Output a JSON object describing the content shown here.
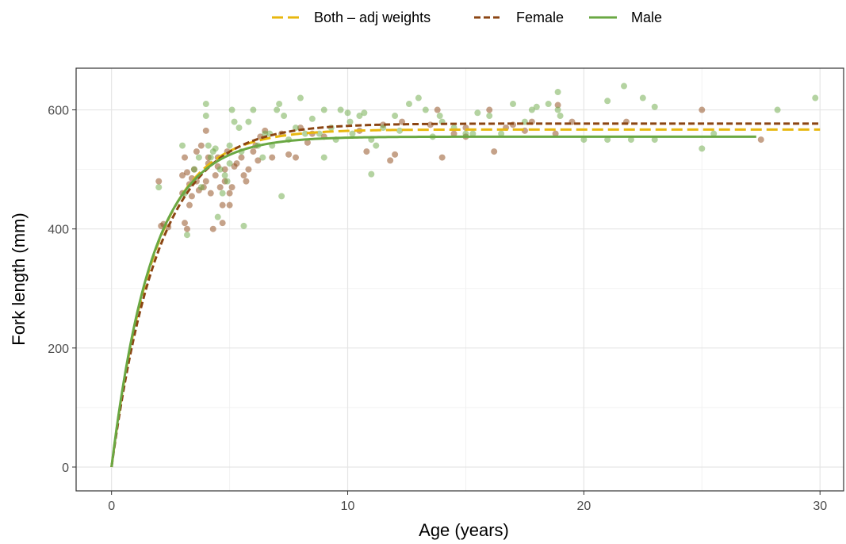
{
  "chart_data": {
    "type": "scatter",
    "xlabel": "Age (years)",
    "ylabel": "Fork length (mm)",
    "xlim": [
      -1.5,
      31
    ],
    "ylim": [
      -40,
      670
    ],
    "x_ticks": [
      0,
      10,
      20,
      30
    ],
    "y_ticks": [
      0,
      200,
      400,
      600
    ],
    "grid": true,
    "legend_position": "top",
    "colors": {
      "both": "#E8B70F",
      "female": "#8B4513",
      "male": "#6AA843"
    },
    "series": [
      {
        "name": "Both – adj weights",
        "color": "#E8B70F",
        "linestyle": "longdash",
        "linf": 567,
        "k": 0.55,
        "t0": 0,
        "xmax": 30
      },
      {
        "name": "Female",
        "color": "#8B4513",
        "linestyle": "dashed",
        "linf": 577,
        "k": 0.5,
        "t0": 0,
        "xmax": 30
      },
      {
        "name": "Male",
        "color": "#6AA843",
        "linestyle": "solid",
        "linf": 555,
        "k": 0.58,
        "t0": 0,
        "xmax": 27.3
      }
    ],
    "points_female": [
      [
        2.1,
        405
      ],
      [
        2.2,
        408
      ],
      [
        2.0,
        480
      ],
      [
        3.0,
        490
      ],
      [
        3.2,
        495
      ],
      [
        3.1,
        520
      ],
      [
        3.3,
        475
      ],
      [
        3.0,
        460
      ],
      [
        3.3,
        440
      ],
      [
        3.1,
        410
      ],
      [
        3.2,
        400
      ],
      [
        3.4,
        455
      ],
      [
        3.5,
        500
      ],
      [
        3.6,
        530
      ],
      [
        3.8,
        540
      ],
      [
        3.9,
        470
      ],
      [
        4.0,
        565
      ],
      [
        4.1,
        520
      ],
      [
        4.0,
        480
      ],
      [
        4.2,
        460
      ],
      [
        4.3,
        400
      ],
      [
        4.4,
        490
      ],
      [
        4.5,
        520
      ],
      [
        4.6,
        470
      ],
      [
        4.7,
        440
      ],
      [
        4.7,
        410
      ],
      [
        4.8,
        500
      ],
      [
        4.9,
        530
      ],
      [
        5.0,
        460
      ],
      [
        5.0,
        440
      ],
      [
        5.1,
        470
      ],
      [
        5.5,
        520
      ],
      [
        5.7,
        480
      ],
      [
        5.8,
        500
      ],
      [
        5.6,
        490
      ],
      [
        6.0,
        530
      ],
      [
        6.1,
        540
      ],
      [
        6.3,
        555
      ],
      [
        6.5,
        565
      ],
      [
        6.8,
        520
      ],
      [
        7.2,
        560
      ],
      [
        7.5,
        525
      ],
      [
        7.8,
        520
      ],
      [
        8.0,
        570
      ],
      [
        8.3,
        545
      ],
      [
        8.5,
        560
      ],
      [
        9.0,
        555
      ],
      [
        10.5,
        565
      ],
      [
        10.8,
        530
      ],
      [
        11.5,
        575
      ],
      [
        11.8,
        515
      ],
      [
        12.0,
        525
      ],
      [
        12.3,
        580
      ],
      [
        13.5,
        575
      ],
      [
        13.8,
        600
      ],
      [
        14.0,
        520
      ],
      [
        14.5,
        560
      ],
      [
        15.0,
        555
      ],
      [
        15.0,
        570
      ],
      [
        16.0,
        600
      ],
      [
        16.2,
        530
      ],
      [
        16.7,
        570
      ],
      [
        17.0,
        575
      ],
      [
        17.5,
        565
      ],
      [
        17.8,
        580
      ],
      [
        18.8,
        560
      ],
      [
        18.9,
        608
      ],
      [
        19.5,
        580
      ],
      [
        21.8,
        580
      ],
      [
        25.0,
        600
      ],
      [
        27.5,
        550
      ],
      [
        4.5,
        505
      ],
      [
        3.7,
        465
      ],
      [
        5.3,
        510
      ],
      [
        6.2,
        515
      ],
      [
        4.1,
        510
      ],
      [
        3.4,
        485
      ],
      [
        2.4,
        403
      ],
      [
        4.8,
        480
      ],
      [
        5.2,
        505
      ],
      [
        3.6,
        480
      ]
    ],
    "points_male": [
      [
        2.0,
        470
      ],
      [
        3.0,
        540
      ],
      [
        3.2,
        390
      ],
      [
        3.1,
        460
      ],
      [
        3.5,
        500
      ],
      [
        3.8,
        470
      ],
      [
        4.0,
        610
      ],
      [
        4.0,
        590
      ],
      [
        4.1,
        540
      ],
      [
        4.3,
        530
      ],
      [
        4.5,
        420
      ],
      [
        4.6,
        500
      ],
      [
        4.7,
        460
      ],
      [
        4.8,
        490
      ],
      [
        4.9,
        480
      ],
      [
        5.0,
        540
      ],
      [
        5.0,
        510
      ],
      [
        5.1,
        600
      ],
      [
        5.2,
        580
      ],
      [
        5.4,
        570
      ],
      [
        5.6,
        405
      ],
      [
        5.8,
        580
      ],
      [
        6.0,
        600
      ],
      [
        6.2,
        540
      ],
      [
        6.5,
        560
      ],
      [
        6.7,
        560
      ],
      [
        6.8,
        540
      ],
      [
        7.0,
        600
      ],
      [
        7.1,
        610
      ],
      [
        7.2,
        455
      ],
      [
        7.3,
        590
      ],
      [
        7.5,
        550
      ],
      [
        7.8,
        570
      ],
      [
        8.0,
        620
      ],
      [
        8.2,
        560
      ],
      [
        8.5,
        585
      ],
      [
        8.8,
        560
      ],
      [
        9.0,
        520
      ],
      [
        9.0,
        600
      ],
      [
        9.3,
        570
      ],
      [
        9.5,
        550
      ],
      [
        9.7,
        600
      ],
      [
        10.0,
        595
      ],
      [
        10.1,
        580
      ],
      [
        10.2,
        560
      ],
      [
        10.5,
        590
      ],
      [
        10.7,
        595
      ],
      [
        11.0,
        550
      ],
      [
        11.2,
        540
      ],
      [
        11.0,
        492
      ],
      [
        11.5,
        570
      ],
      [
        12.0,
        590
      ],
      [
        12.2,
        565
      ],
      [
        12.6,
        610
      ],
      [
        13.0,
        620
      ],
      [
        13.3,
        600
      ],
      [
        13.6,
        555
      ],
      [
        13.9,
        590
      ],
      [
        14.0,
        580
      ],
      [
        14.5,
        570
      ],
      [
        15.0,
        560
      ],
      [
        15.5,
        595
      ],
      [
        16.0,
        590
      ],
      [
        16.5,
        560
      ],
      [
        17.0,
        610
      ],
      [
        17.5,
        580
      ],
      [
        17.8,
        600
      ],
      [
        18.0,
        605
      ],
      [
        18.5,
        610
      ],
      [
        18.9,
        630
      ],
      [
        19.0,
        590
      ],
      [
        20.0,
        550
      ],
      [
        21.0,
        615
      ],
      [
        21.0,
        550
      ],
      [
        21.7,
        640
      ],
      [
        22.0,
        550
      ],
      [
        22.5,
        620
      ],
      [
        23.0,
        605
      ],
      [
        23.0,
        550
      ],
      [
        25.0,
        535
      ],
      [
        25.5,
        560
      ],
      [
        28.2,
        600
      ],
      [
        29.8,
        620
      ],
      [
        18.9,
        600
      ],
      [
        15.3,
        560
      ],
      [
        4.2,
        520
      ],
      [
        5.5,
        530
      ],
      [
        6.4,
        520
      ],
      [
        3.7,
        520
      ],
      [
        4.4,
        535
      ]
    ]
  }
}
